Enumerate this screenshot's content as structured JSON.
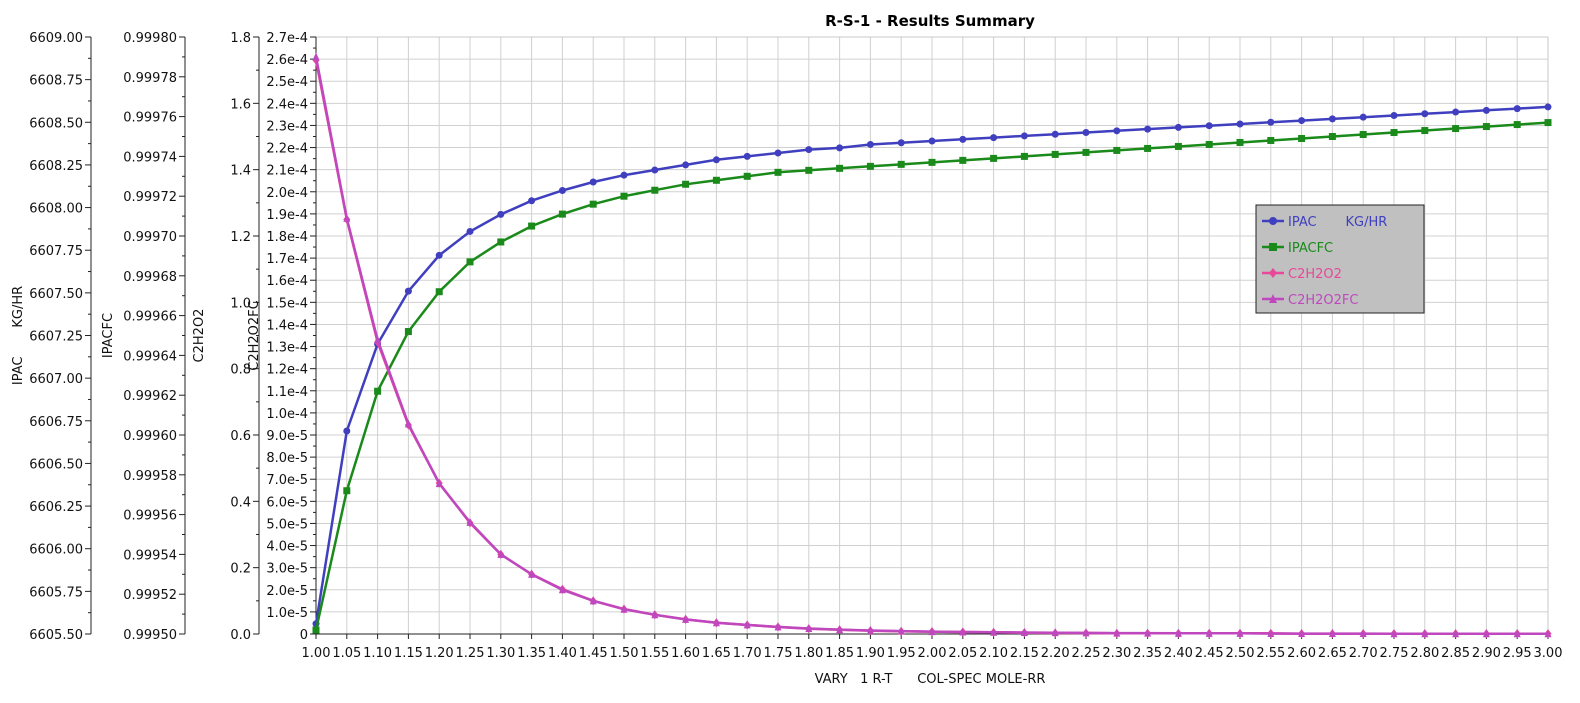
{
  "chart_data": {
    "type": "line",
    "title": "R-S-1 - Results Summary",
    "xlabel": "VARY   1 R-T      COL-SPEC MOLE-RR",
    "x": [
      1.0,
      1.05,
      1.1,
      1.15,
      1.2,
      1.25,
      1.3,
      1.35,
      1.4,
      1.45,
      1.5,
      1.55,
      1.6,
      1.65,
      1.7,
      1.75,
      1.8,
      1.85,
      1.9,
      1.95,
      2.0,
      2.05,
      2.1,
      2.15,
      2.2,
      2.25,
      2.3,
      2.35,
      2.4,
      2.45,
      2.5,
      2.55,
      2.6,
      2.65,
      2.7,
      2.75,
      2.8,
      2.85,
      2.9,
      2.95,
      3.0
    ],
    "x_tick_labels": [
      "1.00",
      "1.05",
      "1.10",
      "1.15",
      "1.20",
      "1.25",
      "1.30",
      "1.35",
      "1.40",
      "1.45",
      "1.50",
      "1.55",
      "1.60",
      "1.65",
      "1.70",
      "1.75",
      "1.80",
      "1.85",
      "1.90",
      "1.95",
      "2.00",
      "2.05",
      "2.10",
      "2.15",
      "2.20",
      "2.25",
      "2.30",
      "2.35",
      "2.40",
      "2.45",
      "2.50",
      "2.55",
      "2.60",
      "2.65",
      "2.70",
      "2.75",
      "2.80",
      "2.85",
      "2.90",
      "2.95",
      "3.00"
    ],
    "xlim": [
      1.0,
      3.0
    ],
    "grid": true,
    "legend_position": "right",
    "axes": [
      {
        "id": "ipac",
        "title": "IPAC       KG/HR",
        "lim": [
          6605.5,
          6609.0
        ],
        "ticks": [
          "6609.00",
          "6608.75",
          "6608.50",
          "6608.25",
          "6608.00",
          "6607.75",
          "6607.50",
          "6607.25",
          "6607.00",
          "6606.75",
          "6606.50",
          "6606.25",
          "6606.00",
          "6605.75",
          "6605.50"
        ]
      },
      {
        "id": "ipacfc",
        "title": "IPACFC",
        "lim": [
          0.9995,
          0.9998
        ],
        "ticks": [
          "0.99980",
          "0.99978",
          "0.99976",
          "0.99974",
          "0.99972",
          "0.99970",
          "0.99968",
          "0.99966",
          "0.99964",
          "0.99962",
          "0.99960",
          "0.99958",
          "0.99956",
          "0.99954",
          "0.99952",
          "0.99950"
        ]
      },
      {
        "id": "c2h2o2",
        "title": "C2H2O2",
        "lim": [
          0.0,
          1.8
        ],
        "ticks": [
          "1.8",
          "1.6",
          "1.4",
          "1.2",
          "1.0",
          "0.8",
          "0.6",
          "0.4",
          "0.2",
          "0.0"
        ]
      },
      {
        "id": "c2h2o2fc",
        "title": "C2H2O2FC",
        "lim": [
          0.0,
          0.00027
        ],
        "ticks": [
          "2.7e-4",
          "2.6e-4",
          "2.5e-4",
          "2.4e-4",
          "2.3e-4",
          "2.2e-4",
          "2.1e-4",
          "2.0e-4",
          "1.9e-4",
          "1.8e-4",
          "1.7e-4",
          "1.6e-4",
          "1.5e-4",
          "1.4e-4",
          "1.3e-4",
          "1.2e-4",
          "1.1e-4",
          "1.0e-4",
          "9.0e-5",
          "8.0e-5",
          "7.0e-5",
          "6.0e-5",
          "5.0e-5",
          "4.0e-5",
          "3.0e-5",
          "2.0e-5",
          "1.0e-5",
          "0"
        ]
      }
    ],
    "series": [
      {
        "name": "IPAC       KG/HR",
        "axis": "ipac",
        "color": "#3f3fbf",
        "marker": "circle",
        "values": [
          6605.56,
          6606.69,
          6607.2,
          6607.51,
          6607.72,
          6607.86,
          6607.96,
          6608.04,
          6608.1,
          6608.15,
          6608.19,
          6608.22,
          6608.25,
          6608.28,
          6608.3,
          6608.32,
          6608.34,
          6608.35,
          6608.37,
          6608.38,
          6608.39,
          6608.4,
          6608.41,
          6608.42,
          6608.43,
          6608.44,
          6608.45,
          6608.46,
          6608.47,
          6608.48,
          6608.49,
          6608.5,
          6608.51,
          6608.52,
          6608.53,
          6608.54,
          6608.55,
          6608.56,
          6608.57,
          6608.58,
          6608.59
        ]
      },
      {
        "name": "IPACFC",
        "axis": "ipacfc",
        "color": "#1a8a1a",
        "marker": "square",
        "values": [
          0.999502,
          0.999572,
          0.999622,
          0.999652,
          0.999672,
          0.999687,
          0.999697,
          0.999705,
          0.999711,
          0.999716,
          0.99972,
          0.999723,
          0.999726,
          0.999728,
          0.99973,
          0.999732,
          0.999733,
          0.999734,
          0.999735,
          0.999736,
          0.999737,
          0.999738,
          0.999739,
          0.99974,
          0.999741,
          0.999742,
          0.999743,
          0.999744,
          0.999745,
          0.999746,
          0.999747,
          0.999748,
          0.999749,
          0.99975,
          0.999751,
          0.999752,
          0.999753,
          0.999754,
          0.999755,
          0.999756,
          0.999757
        ]
      },
      {
        "name": "C2H2O2",
        "axis": "c2h2o2",
        "color": "#e8479a",
        "marker": "diamond",
        "values": [
          1.73,
          1.25,
          0.88,
          0.63,
          0.455,
          0.335,
          0.24,
          0.18,
          0.135,
          0.1,
          0.075,
          0.058,
          0.044,
          0.034,
          0.027,
          0.021,
          0.016,
          0.013,
          0.01,
          0.008,
          0.007,
          0.006,
          0.005,
          0.004,
          0.003,
          0.003,
          0.002,
          0.002,
          0.002,
          0.002,
          0.002,
          0.002,
          0.001,
          0.001,
          0.001,
          0.001,
          0.001,
          0.001,
          0.001,
          0.001,
          0.001
        ]
      },
      {
        "name": "C2H2O2FC",
        "axis": "c2h2o2fc",
        "color": "#bf48bf",
        "marker": "triangle",
        "values": [
          0.000261,
          0.000188,
          0.000133,
          9.5e-05,
          6.8e-05,
          5.05e-05,
          3.6e-05,
          2.7e-05,
          2e-05,
          1.5e-05,
          1.12e-05,
          8.7e-06,
          6.6e-06,
          5.1e-06,
          4.1e-06,
          3.2e-06,
          2.5e-06,
          2e-06,
          1.6e-06,
          1.3e-06,
          1.1e-06,
          9e-07,
          8e-07,
          7e-07,
          6e-07,
          5e-07,
          4e-07,
          4e-07,
          3e-07,
          3e-07,
          3e-07,
          2e-07,
          2e-07,
          2e-07,
          2e-07,
          1e-07,
          1e-07,
          1e-07,
          1e-07,
          1e-07,
          1e-07
        ]
      }
    ]
  }
}
